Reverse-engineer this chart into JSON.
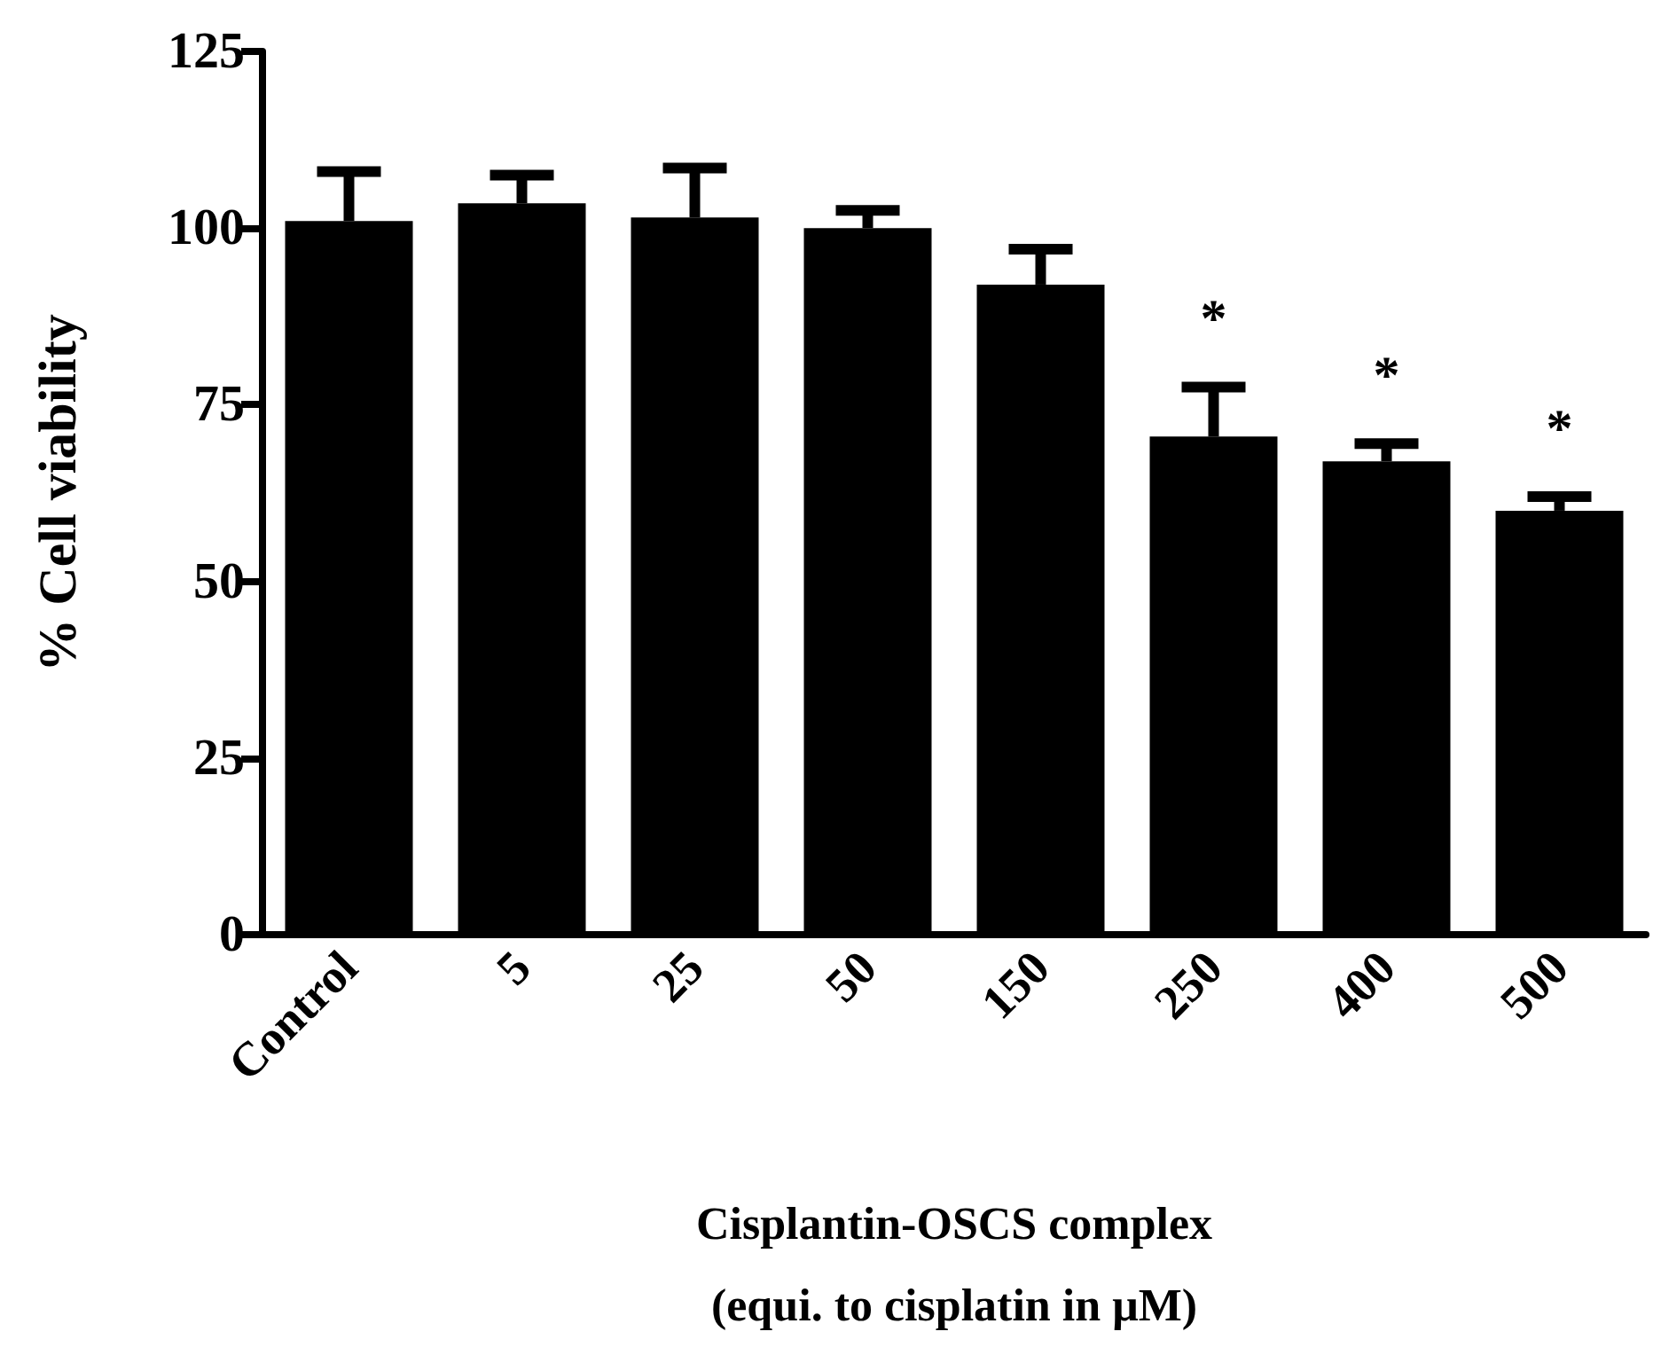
{
  "chart_data": {
    "type": "bar",
    "ylabel": "% Cell viability",
    "xlabel": "Cisplantin-OSCS complex\n(equi. to cisplatin in μM)",
    "categories": [
      "Control",
      "5",
      "25",
      "50",
      "150",
      "250",
      "400",
      "500"
    ],
    "values": [
      101,
      103.5,
      101.5,
      100,
      92,
      70.5,
      67,
      60
    ],
    "errors": [
      [
        101,
        108
      ],
      [
        103.5,
        107.5
      ],
      [
        101.5,
        108.5
      ],
      [
        100,
        102.5
      ],
      [
        92,
        97
      ],
      [
        70.5,
        77.5
      ],
      [
        67,
        69.5
      ],
      [
        60,
        62
      ]
    ],
    "color": "#000000",
    "ylim": [
      0,
      125
    ],
    "yticks": [
      0,
      25,
      50,
      75,
      100,
      125
    ],
    "grid": false,
    "annotations": [
      {
        "text": "*",
        "x": "250",
        "y": 70.5
      },
      {
        "text": "*",
        "x": "400",
        "y": 67
      },
      {
        "text": "*",
        "x": "500",
        "y": 60
      }
    ]
  }
}
